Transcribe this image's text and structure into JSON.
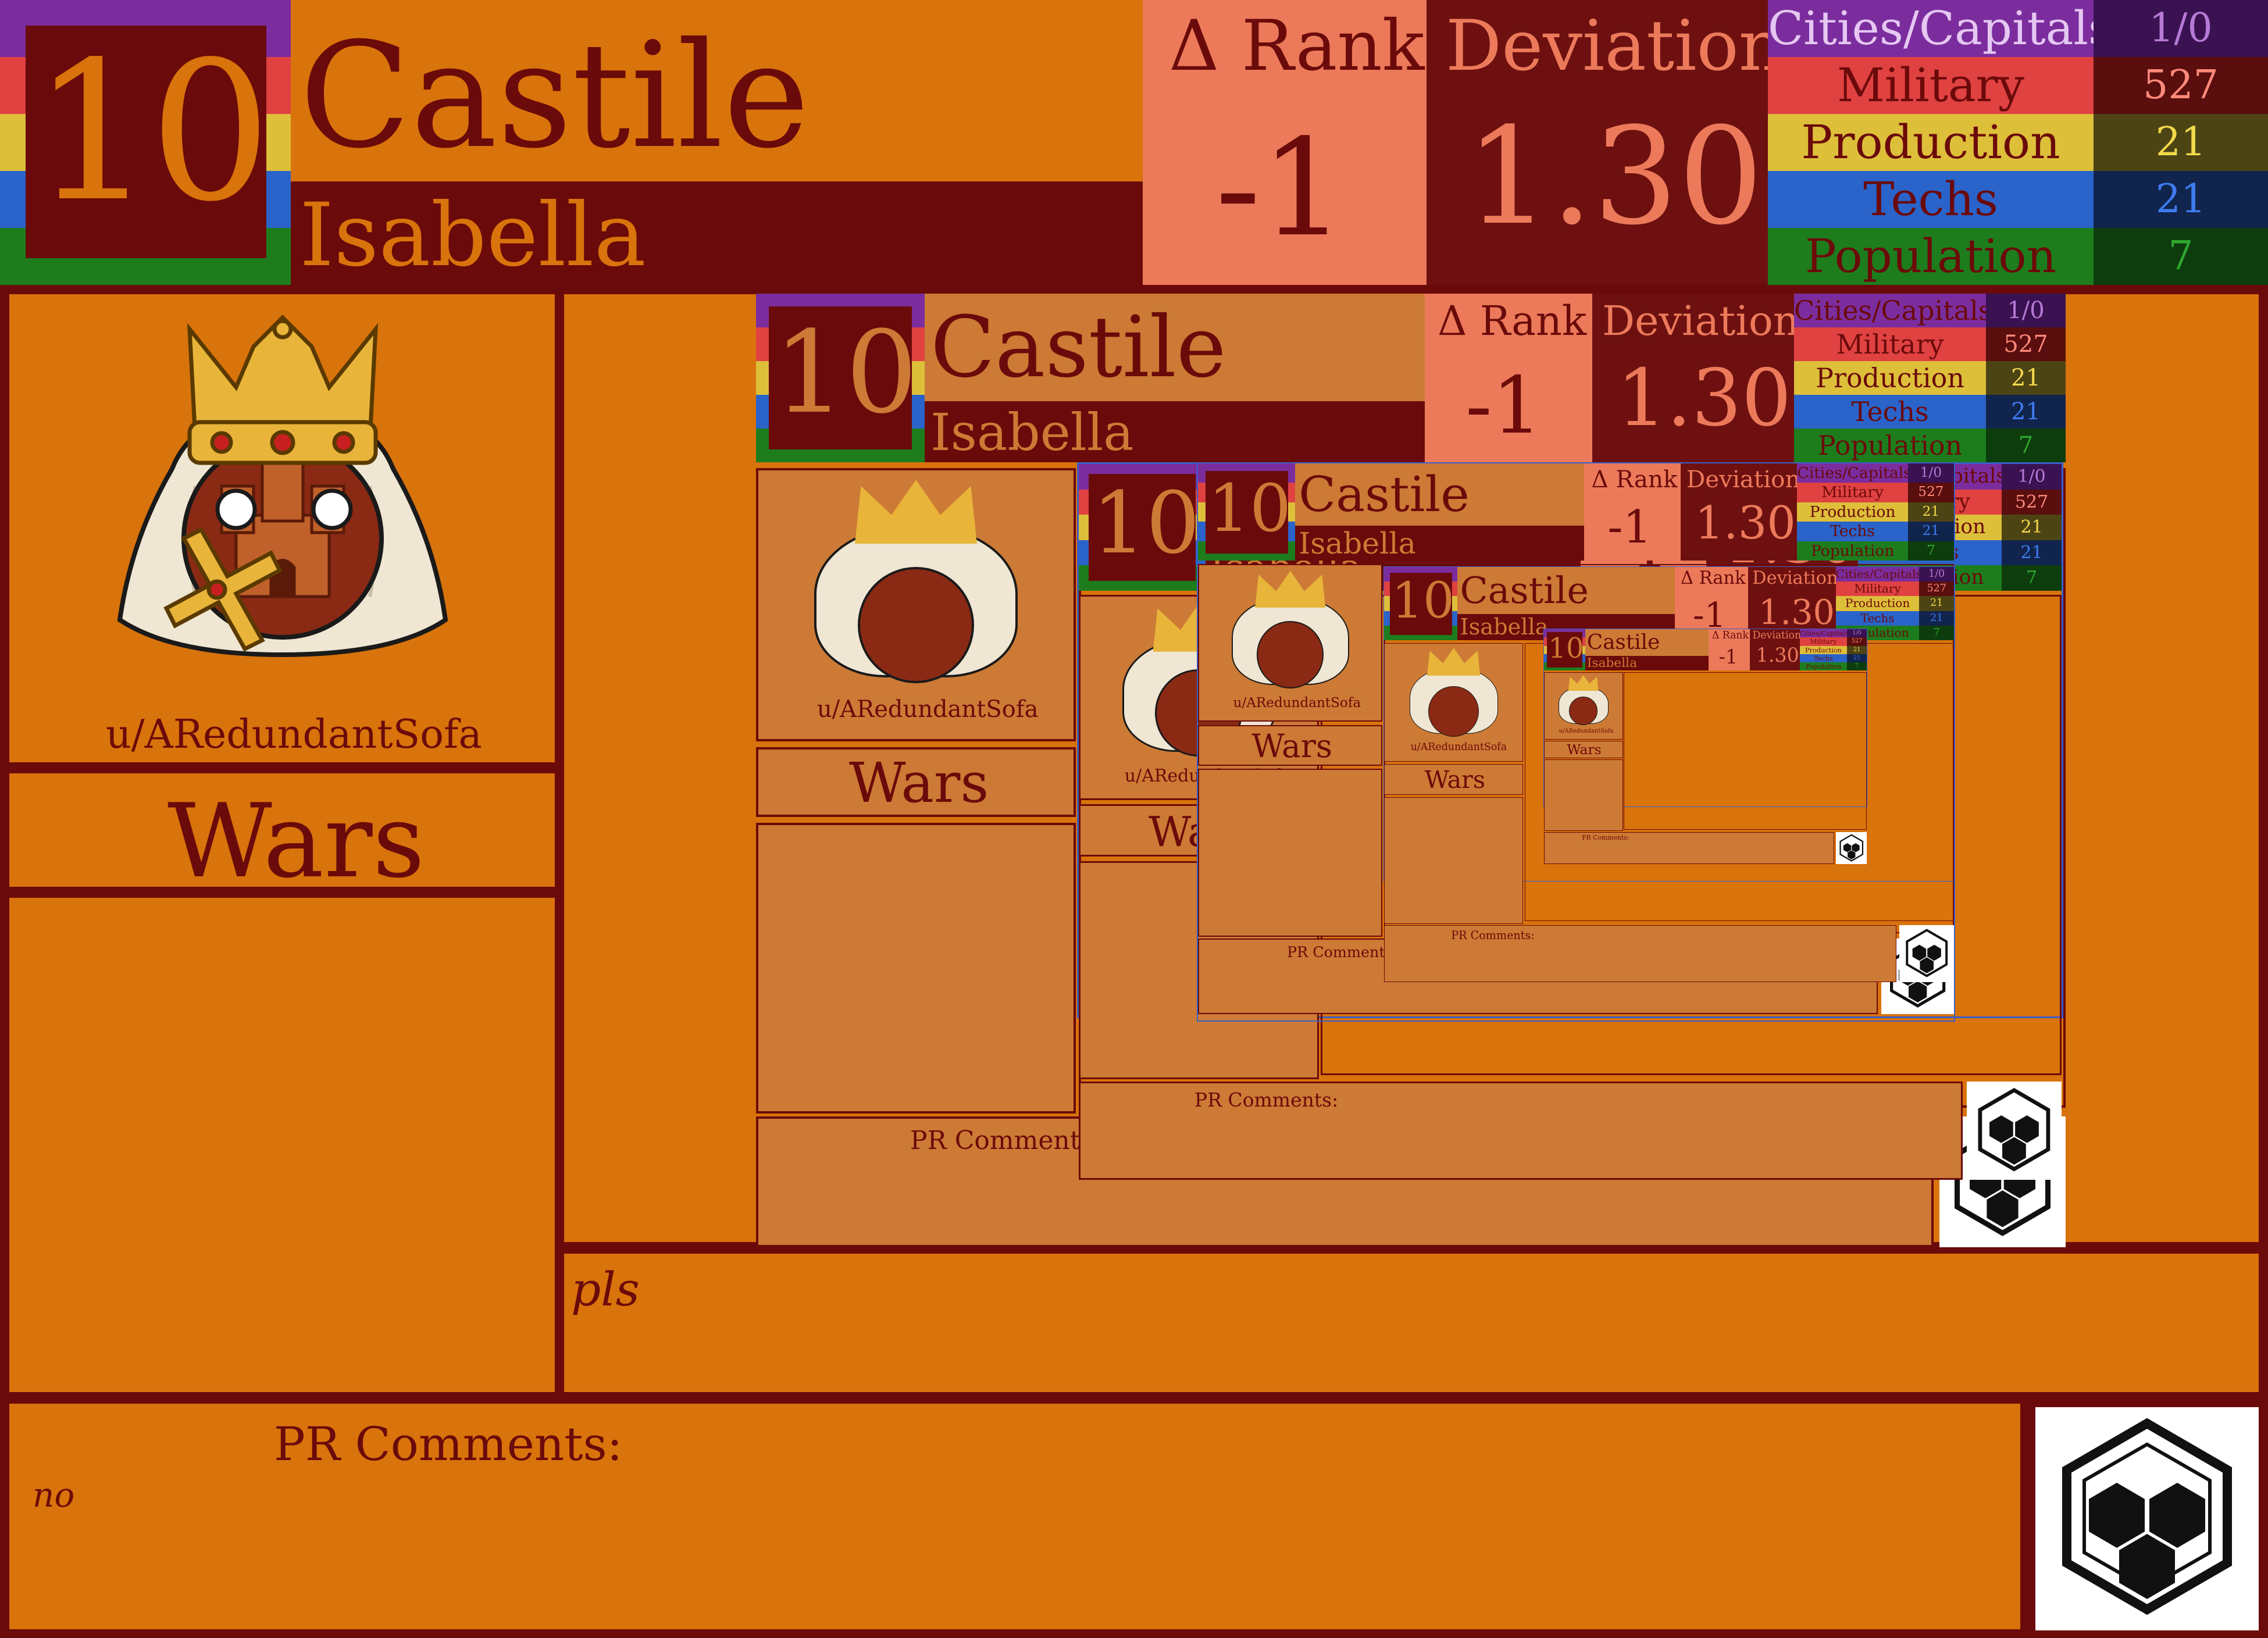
{
  "header": {
    "rank": "10",
    "nation": "Castile",
    "leader": "Isabella",
    "delta_rank_label": "Δ Rank",
    "delta_rank_value": "-1",
    "deviation_label": "Deviation",
    "deviation_value": "1.30"
  },
  "stats": [
    {
      "label": "Cities/Capitals",
      "value": "1/0",
      "color": "#7b2d9e",
      "dark": "#3a1252",
      "text": "#b77ad6"
    },
    {
      "label": "Military",
      "value": "527",
      "color": "#e04141",
      "dark": "#5a0e0e",
      "text": "#ff8a7a"
    },
    {
      "label": "Production",
      "value": "21",
      "color": "#ddbf3a",
      "dark": "#4d4414",
      "text": "#f2d94a"
    },
    {
      "label": "Techs",
      "value": "21",
      "color": "#2a63c9",
      "dark": "#10244d",
      "text": "#3f7bf0"
    },
    {
      "label": "Population",
      "value": "7",
      "color": "#1d7d1d",
      "dark": "#0d3d0d",
      "text": "#2ea82e"
    }
  ],
  "profile": {
    "username": "u/ARedundantSofa"
  },
  "wars": {
    "title": "Wars"
  },
  "comments": {
    "pls_text": "pls",
    "pr_label": "PR Comments:",
    "pr_text": "no"
  },
  "nested": {
    "rank": "10",
    "nation": "Castile",
    "leader": "Isabella",
    "delta_label": "Δ Rank",
    "delta_value": "-1",
    "dev_label": "Deviation",
    "dev_value": "1.30",
    "username": "u/ARedundantSofa",
    "wars": "Wars",
    "pr_label": "PR Comments:"
  },
  "colors": {
    "orange": "#d9730b",
    "maroon": "#6b0a0a",
    "salmon": "#ec7a5a",
    "dark_red": "#6e1010"
  },
  "icons": [
    "crown-icon",
    "castile-ball-icon",
    "cross-icon",
    "hex-logo-icon"
  ]
}
